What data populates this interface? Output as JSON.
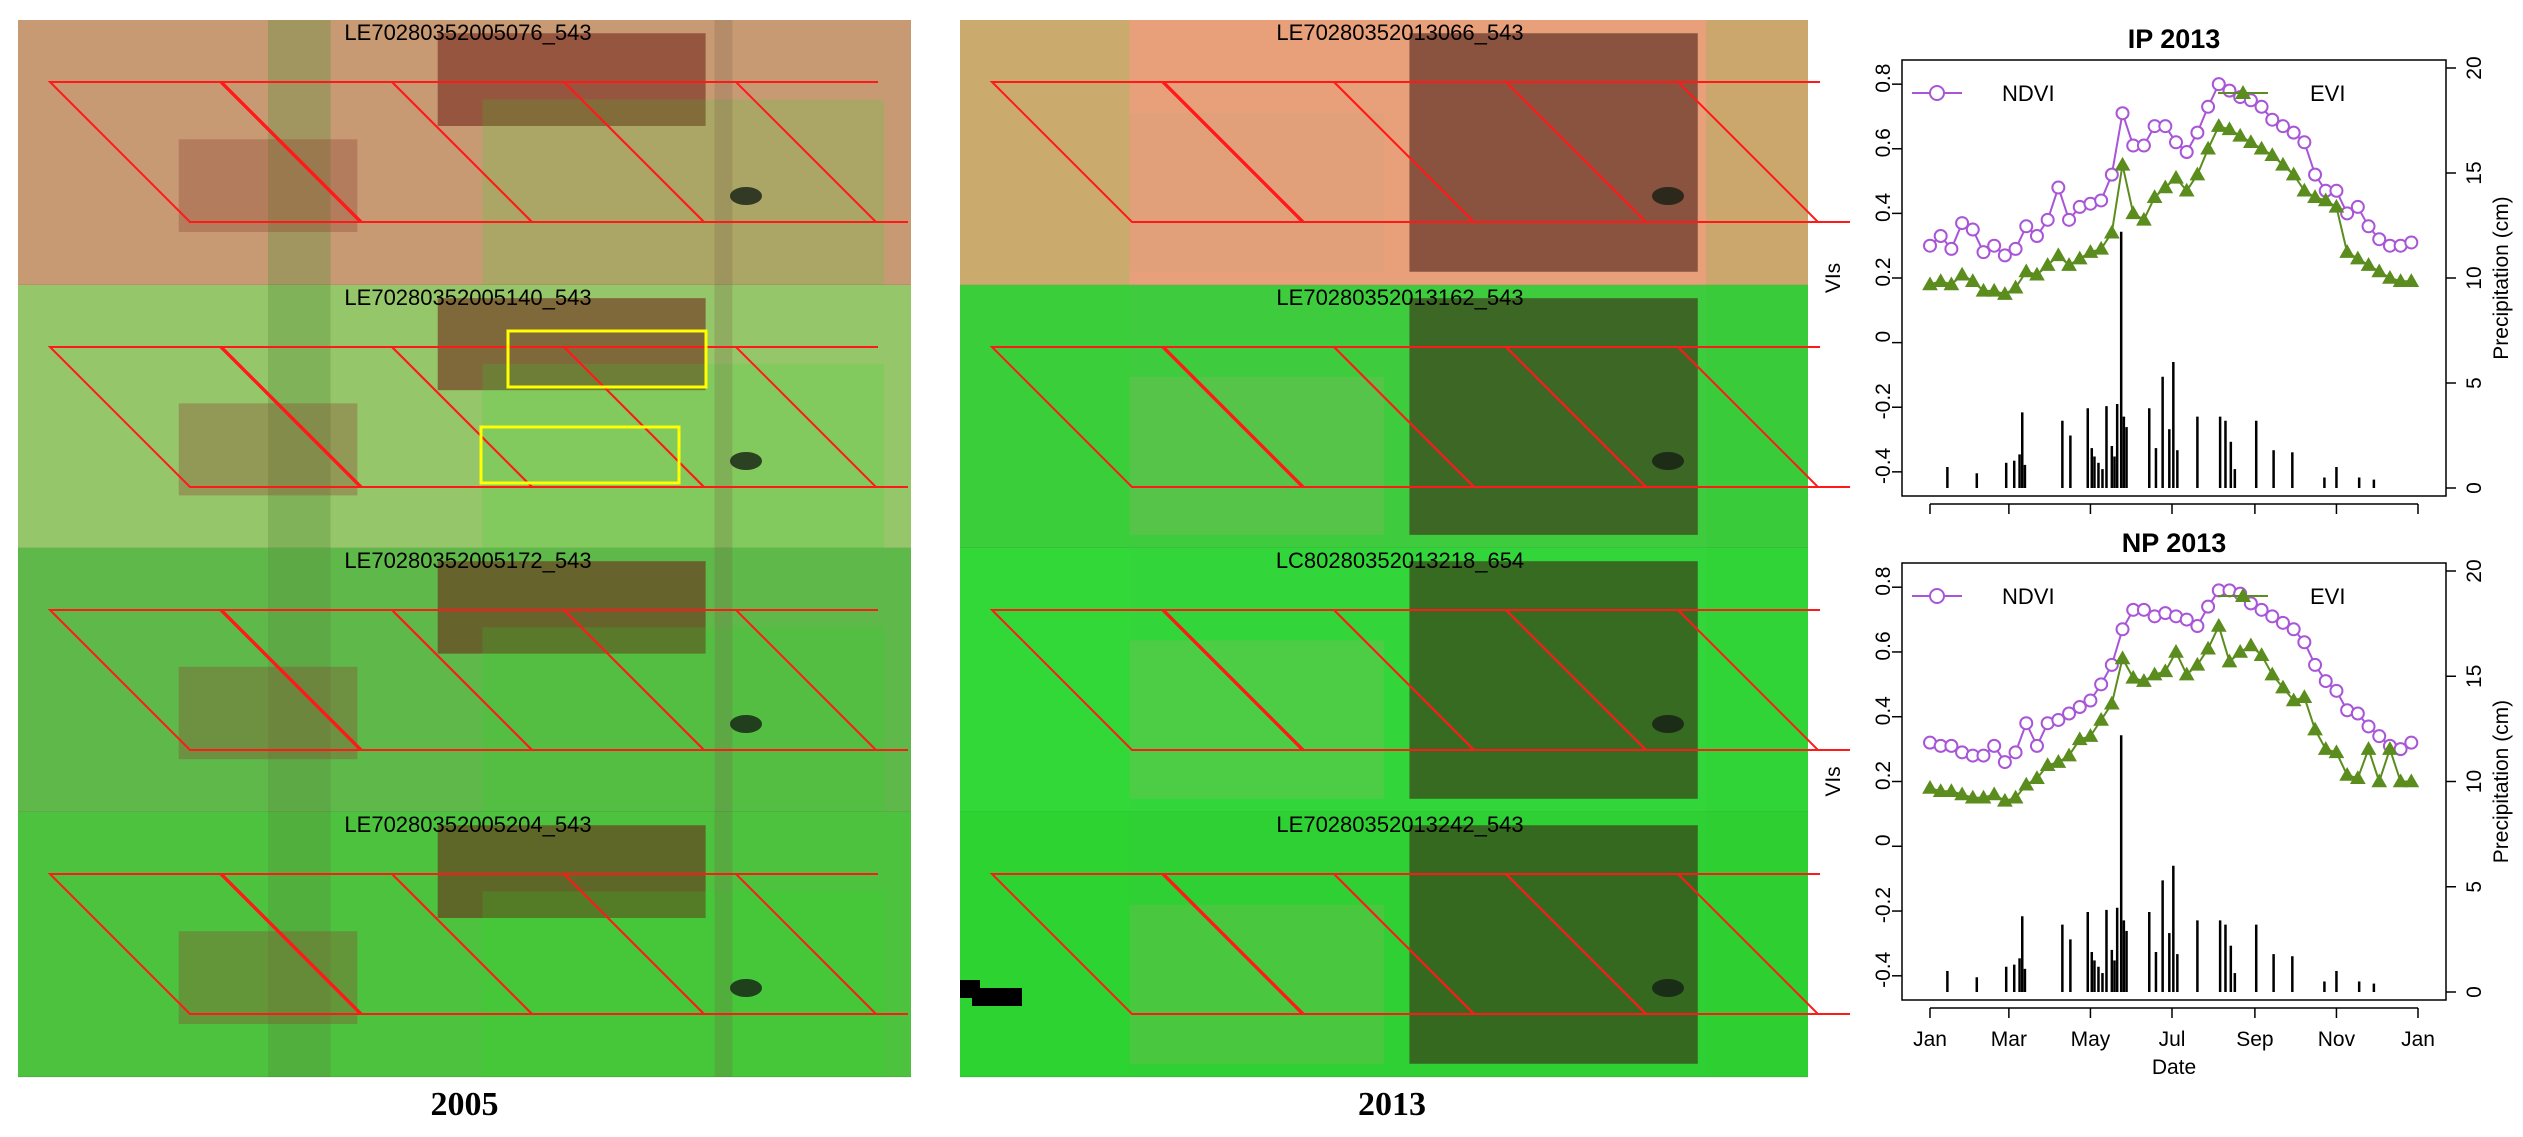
{
  "imagery": {
    "columns": [
      {
        "year_label": "2005",
        "tiles": [
          {
            "label": "LE70280352005076_543",
            "base_color": "#c89a74",
            "highlight_boxes": 0
          },
          {
            "label": "LE70280352005140_543",
            "base_color": "#96c66a",
            "highlight_boxes": 2
          },
          {
            "label": "LE70280352005172_543",
            "base_color": "#5fb84a",
            "highlight_boxes": 0
          },
          {
            "label": "LE70280352005204_543",
            "base_color": "#4cc23e",
            "highlight_boxes": 0
          }
        ]
      },
      {
        "year_label": "2013",
        "tiles": [
          {
            "label": "LE70280352013066_543",
            "base_color": "#e8a07a",
            "highlight_boxes": 0
          },
          {
            "label": "LE70280352013162_543",
            "base_color": "#3ecc3e",
            "highlight_boxes": 0
          },
          {
            "label": "LC80280352013218_654",
            "base_color": "#33d63a",
            "highlight_boxes": 0
          },
          {
            "label": "LE70280352013242_543",
            "base_color": "#2ed033",
            "highlight_boxes": 0
          }
        ]
      }
    ],
    "parcel_outline_color": "#ff1a1a",
    "highlight_color": "#ffff00"
  },
  "chart_data": [
    {
      "type": "line",
      "title": "IP 2013",
      "xlabel": "",
      "ylabel": "VIs",
      "y2label": "Precipitation (cm)",
      "x_ticks": [
        "Jan",
        "Mar",
        "May",
        "Jul",
        "Sep",
        "Nov",
        "Jan"
      ],
      "x_range_doy": [
        1,
        366
      ],
      "ylim": [
        -0.45,
        0.85
      ],
      "y_ticks": [
        -0.4,
        -0.2,
        0.0,
        0.2,
        0.4,
        0.6,
        0.8
      ],
      "y2lim": [
        0,
        20
      ],
      "y2_ticks": [
        0,
        5,
        10,
        15,
        20
      ],
      "legend": [
        "NDVI",
        "EVI"
      ],
      "series": [
        {
          "name": "NDVI",
          "color": "#a855d8",
          "marker": "circle",
          "x": [
            1,
            9,
            17,
            25,
            33,
            41,
            49,
            57,
            65,
            73,
            81,
            89,
            97,
            105,
            113,
            121,
            129,
            137,
            145,
            153,
            161,
            169,
            177,
            185,
            193,
            201,
            209,
            217,
            225,
            233,
            241,
            249,
            257,
            265,
            273,
            281,
            289,
            297,
            305,
            313,
            321,
            329,
            337,
            345,
            353,
            361
          ],
          "y": [
            0.3,
            0.33,
            0.29,
            0.37,
            0.35,
            0.28,
            0.3,
            0.27,
            0.29,
            0.36,
            0.33,
            0.38,
            0.48,
            0.38,
            0.42,
            0.43,
            0.44,
            0.52,
            0.71,
            0.61,
            0.61,
            0.67,
            0.67,
            0.62,
            0.59,
            0.65,
            0.73,
            0.8,
            0.78,
            0.76,
            0.75,
            0.73,
            0.69,
            0.67,
            0.65,
            0.62,
            0.52,
            0.47,
            0.47,
            0.4,
            0.42,
            0.36,
            0.32,
            0.3,
            0.3,
            0.31
          ]
        },
        {
          "name": "EVI",
          "color": "#5b8c1e",
          "marker": "triangle",
          "x": [
            1,
            9,
            17,
            25,
            33,
            41,
            49,
            57,
            65,
            73,
            81,
            89,
            97,
            105,
            113,
            121,
            129,
            137,
            145,
            153,
            161,
            169,
            177,
            185,
            193,
            201,
            209,
            217,
            225,
            233,
            241,
            249,
            257,
            265,
            273,
            281,
            289,
            297,
            305,
            313,
            321,
            329,
            337,
            345,
            353,
            361
          ],
          "y": [
            0.18,
            0.19,
            0.18,
            0.21,
            0.19,
            0.16,
            0.16,
            0.15,
            0.17,
            0.22,
            0.21,
            0.24,
            0.27,
            0.24,
            0.26,
            0.28,
            0.29,
            0.34,
            0.55,
            0.4,
            0.38,
            0.45,
            0.48,
            0.51,
            0.47,
            0.52,
            0.6,
            0.67,
            0.66,
            0.64,
            0.62,
            0.6,
            0.58,
            0.55,
            0.52,
            0.47,
            0.45,
            0.44,
            0.42,
            0.28,
            0.26,
            0.24,
            0.22,
            0.2,
            0.19,
            0.19
          ]
        },
        {
          "name": "Precipitation",
          "color": "#000000",
          "marker": "bar",
          "x": [
            14,
            36,
            58,
            64,
            68,
            70,
            72,
            100,
            106,
            119,
            122,
            124,
            127,
            130,
            133,
            137,
            139,
            141,
            144,
            146,
            148,
            165,
            170,
            175,
            180,
            183,
            186,
            201,
            218,
            222,
            226,
            229,
            245,
            258,
            272,
            296,
            305,
            322,
            333
          ],
          "y": [
            1.0,
            0.7,
            1.2,
            1.3,
            1.6,
            3.6,
            1.1,
            3.2,
            2.5,
            3.8,
            1.9,
            1.5,
            1.2,
            0.9,
            3.9,
            2.0,
            1.5,
            4.0,
            12.2,
            3.4,
            2.9,
            3.8,
            1.9,
            5.3,
            2.8,
            6.0,
            1.8,
            3.4,
            3.4,
            3.2,
            2.2,
            0.9,
            3.2,
            1.8,
            1.7,
            0.5,
            1.0,
            0.5,
            0.4
          ]
        }
      ]
    },
    {
      "type": "line",
      "title": "NP 2013",
      "xlabel": "Date",
      "ylabel": "VIs",
      "y2label": "Precipitation (cm)",
      "x_ticks": [
        "Jan",
        "Mar",
        "May",
        "Jul",
        "Sep",
        "Nov",
        "Jan"
      ],
      "x_range_doy": [
        1,
        366
      ],
      "ylim": [
        -0.45,
        0.85
      ],
      "y_ticks": [
        -0.4,
        -0.2,
        0.0,
        0.2,
        0.4,
        0.6,
        0.8
      ],
      "y2lim": [
        0,
        20
      ],
      "y2_ticks": [
        0,
        5,
        10,
        15,
        20
      ],
      "legend": [
        "NDVI",
        "EVI"
      ],
      "series": [
        {
          "name": "NDVI",
          "color": "#a855d8",
          "marker": "circle",
          "x": [
            1,
            9,
            17,
            25,
            33,
            41,
            49,
            57,
            65,
            73,
            81,
            89,
            97,
            105,
            113,
            121,
            129,
            137,
            145,
            153,
            161,
            169,
            177,
            185,
            193,
            201,
            209,
            217,
            225,
            233,
            241,
            249,
            257,
            265,
            273,
            281,
            289,
            297,
            305,
            313,
            321,
            329,
            337,
            345,
            353,
            361
          ],
          "y": [
            0.32,
            0.31,
            0.31,
            0.29,
            0.28,
            0.28,
            0.31,
            0.26,
            0.29,
            0.38,
            0.31,
            0.38,
            0.39,
            0.41,
            0.43,
            0.45,
            0.5,
            0.56,
            0.67,
            0.73,
            0.73,
            0.71,
            0.72,
            0.71,
            0.7,
            0.68,
            0.74,
            0.79,
            0.79,
            0.78,
            0.75,
            0.73,
            0.71,
            0.69,
            0.67,
            0.63,
            0.56,
            0.51,
            0.48,
            0.42,
            0.41,
            0.37,
            0.34,
            0.31,
            0.3,
            0.32
          ]
        },
        {
          "name": "EVI",
          "color": "#5b8c1e",
          "marker": "triangle",
          "x": [
            1,
            9,
            17,
            25,
            33,
            41,
            49,
            57,
            65,
            73,
            81,
            89,
            97,
            105,
            113,
            121,
            129,
            137,
            145,
            153,
            161,
            169,
            177,
            185,
            193,
            201,
            209,
            217,
            225,
            233,
            241,
            249,
            257,
            265,
            273,
            281,
            289,
            297,
            305,
            313,
            321,
            329,
            337,
            345,
            353,
            361
          ],
          "y": [
            0.18,
            0.17,
            0.17,
            0.16,
            0.15,
            0.15,
            0.16,
            0.14,
            0.15,
            0.19,
            0.21,
            0.25,
            0.26,
            0.28,
            0.33,
            0.34,
            0.39,
            0.44,
            0.58,
            0.52,
            0.51,
            0.53,
            0.54,
            0.6,
            0.53,
            0.56,
            0.61,
            0.68,
            0.57,
            0.6,
            0.62,
            0.59,
            0.53,
            0.49,
            0.45,
            0.46,
            0.36,
            0.3,
            0.29,
            0.22,
            0.21,
            0.3,
            0.2,
            0.3,
            0.2,
            0.2
          ]
        },
        {
          "name": "Precipitation",
          "color": "#000000",
          "marker": "bar",
          "x": [
            14,
            36,
            58,
            64,
            68,
            70,
            72,
            100,
            106,
            119,
            122,
            124,
            127,
            130,
            133,
            137,
            139,
            141,
            144,
            146,
            148,
            165,
            170,
            175,
            180,
            183,
            186,
            201,
            218,
            222,
            226,
            229,
            245,
            258,
            272,
            296,
            305,
            322,
            333
          ],
          "y": [
            1.0,
            0.7,
            1.2,
            1.3,
            1.6,
            3.6,
            1.1,
            3.2,
            2.5,
            3.8,
            1.9,
            1.5,
            1.2,
            0.9,
            3.9,
            2.0,
            1.5,
            4.0,
            12.2,
            3.4,
            2.9,
            3.8,
            1.9,
            5.3,
            2.8,
            6.0,
            1.8,
            3.4,
            3.4,
            3.2,
            2.2,
            0.9,
            3.2,
            1.8,
            1.7,
            0.5,
            1.0,
            0.5,
            0.4
          ]
        }
      ]
    }
  ]
}
